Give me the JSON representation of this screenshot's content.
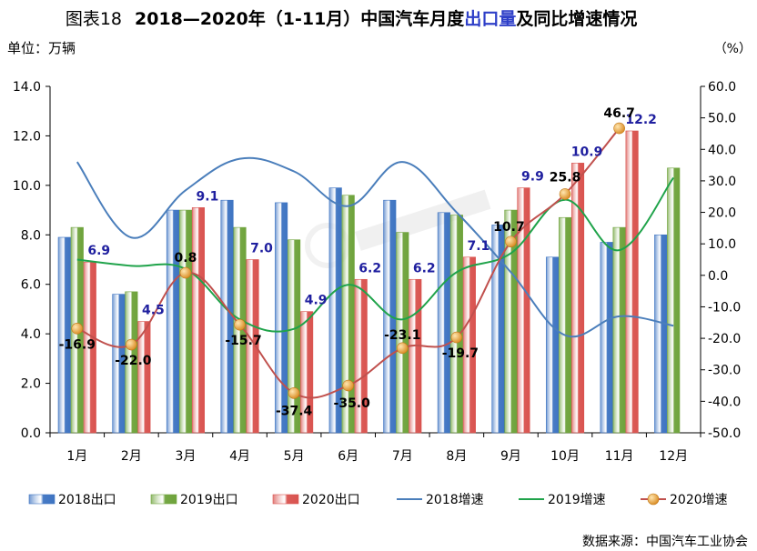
{
  "chart_data": {
    "type": "bar",
    "title_prefix": "图表18",
    "title_main": "2018—2020年（1-11月）中国汽车月度",
    "title_highlight": "出口量",
    "title_suffix": "及同比增速情况",
    "left_unit": "单位：万辆",
    "right_unit": "（%）",
    "source": "数据来源：中国汽车工业协会",
    "watermark": "",
    "categories": [
      "1月",
      "2月",
      "3月",
      "4月",
      "5月",
      "6月",
      "7月",
      "8月",
      "9月",
      "10月",
      "11月",
      "12月"
    ],
    "ylim": [
      0,
      14
    ],
    "y_ticks": [
      "0.0",
      "2.0",
      "4.0",
      "6.0",
      "8.0",
      "10.0",
      "12.0",
      "14.0"
    ],
    "y2lim": [
      -50,
      60
    ],
    "y2_ticks": [
      "-50.0",
      "-40.0",
      "-30.0",
      "-20.0",
      "-10.0",
      "0.0",
      "10.0",
      "20.0",
      "30.0",
      "40.0",
      "50.0",
      "60.0"
    ],
    "bar_series": [
      {
        "name": "2018出口",
        "color": "#3E74C2",
        "values": [
          7.9,
          5.6,
          9.0,
          9.4,
          9.3,
          9.9,
          9.4,
          8.9,
          8.4,
          7.1,
          7.7,
          8.0
        ]
      },
      {
        "name": "2019出口",
        "color": "#6EA33B",
        "values": [
          8.3,
          5.7,
          9.0,
          8.3,
          7.8,
          9.6,
          8.1,
          8.8,
          9.0,
          8.7,
          8.3,
          10.7
        ]
      },
      {
        "name": "2020出口",
        "color": "#D9534F",
        "values": [
          6.9,
          4.5,
          9.1,
          7.0,
          4.9,
          6.2,
          6.2,
          7.1,
          9.9,
          10.9,
          12.2,
          null
        ]
      }
    ],
    "bar_value_labels": [
      "6.9",
      "4.5",
      "9.1",
      "7.0",
      "4.9",
      "6.2",
      "6.2",
      "7.1",
      "9.9",
      "10.9",
      "12.2",
      ""
    ],
    "line_series": [
      {
        "name": "2018增速",
        "color": "#4A7EBB",
        "values": [
          36,
          12,
          27,
          37,
          33,
          22,
          36,
          20,
          1,
          -19,
          -13,
          -16
        ]
      },
      {
        "name": "2019增速",
        "color": "#1FA34A",
        "values": [
          5,
          3,
          2,
          -14,
          -17,
          -3,
          -14,
          1,
          7,
          24,
          8,
          31
        ]
      },
      {
        "name": "2020增速",
        "color": "#C0504D",
        "marker_color": "#F0A030",
        "values": [
          -16.9,
          -22.0,
          0.8,
          -15.7,
          -37.4,
          -35.0,
          -23.1,
          -19.7,
          10.7,
          25.8,
          46.7,
          null
        ]
      }
    ],
    "growth_value_labels": [
      "-16.9",
      "-22.0",
      "0.8",
      "-15.7",
      "-37.4",
      "-35.0",
      "-23.1",
      "-19.7",
      "10.7",
      "25.8",
      "46.7",
      ""
    ]
  }
}
